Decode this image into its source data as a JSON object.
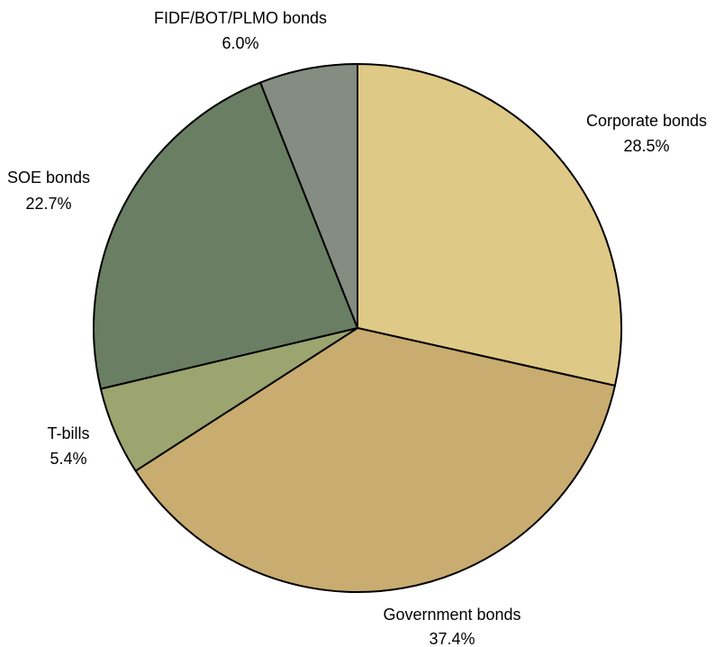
{
  "chart_data": {
    "type": "pie",
    "title": "",
    "slices": [
      {
        "label": "Corporate bonds",
        "value": 28.5,
        "value_label": "28.5%",
        "color": "#dfc986"
      },
      {
        "label": "Government bonds",
        "value": 37.4,
        "value_label": "37.4%",
        "color": "#c9ac6f"
      },
      {
        "label": "T-bills",
        "value": 5.4,
        "value_label": "5.4%",
        "color": "#9ca46f"
      },
      {
        "label": "SOE bonds",
        "value": 22.7,
        "value_label": "22.7%",
        "color": "#6a7e63"
      },
      {
        "label": "FIDF/BOT/PLMO bonds",
        "value": 6.0,
        "value_label": "6.0%",
        "color": "#858d82"
      }
    ],
    "start_angle": "12 o'clock",
    "direction": "clockwise",
    "legend": "none",
    "slice_outline_color": "#000000"
  }
}
